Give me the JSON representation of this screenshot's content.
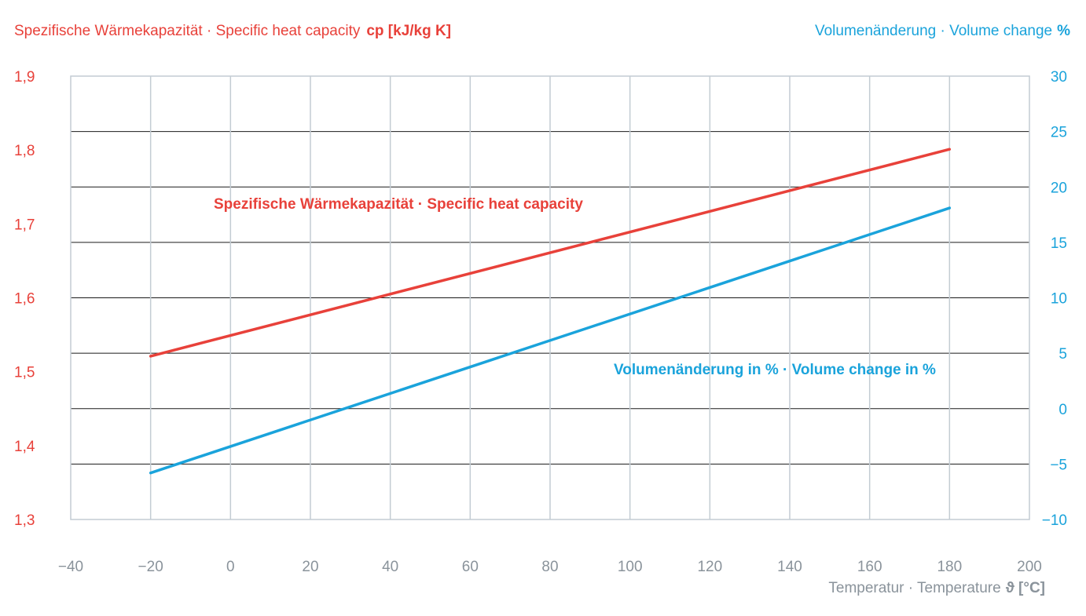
{
  "chart_data": {
    "type": "line",
    "left_axis_title": {
      "text": "Spezifische Wärmekapazität · Specific heat capacity",
      "unit": "cp [kJ/kg K]"
    },
    "right_axis_title": {
      "text": "Volumenänderung · Volume change",
      "unit": "%"
    },
    "x_axis_title": {
      "text": "Temperatur · Temperature",
      "unit": "ϑ [°C]"
    },
    "x_range": [
      -40,
      200
    ],
    "x_ticks": [
      "−40",
      "−20",
      "0",
      "20",
      "40",
      "60",
      "80",
      "100",
      "120",
      "140",
      "160",
      "180",
      "200"
    ],
    "y_left_range": [
      1.3,
      1.9
    ],
    "y_left_ticks": [
      "1,3",
      "1,4",
      "1,5",
      "1,6",
      "1,7",
      "1,8",
      "1,9"
    ],
    "y_right_range": [
      -10,
      30
    ],
    "y_right_ticks": [
      "−10",
      "−5",
      "0",
      "5",
      "10",
      "15",
      "20",
      "25",
      "30"
    ],
    "grid": true,
    "colors": {
      "left": "#e8413a",
      "right": "#1aa3db",
      "grid_v": "#c3ccd3",
      "grid_h": "#1a1a1a",
      "axis_text": "#8a939b"
    },
    "series": [
      {
        "name": "Spezifische Wärmekapazität · Specific heat capacity",
        "axis": "left",
        "x": [
          -20,
          180
        ],
        "values": [
          1.521,
          1.801
        ]
      },
      {
        "name": "Volumenänderung in % · Volume change in %",
        "axis": "right",
        "x": [
          -20,
          180
        ],
        "values": [
          -5.8,
          18.1
        ]
      }
    ]
  }
}
